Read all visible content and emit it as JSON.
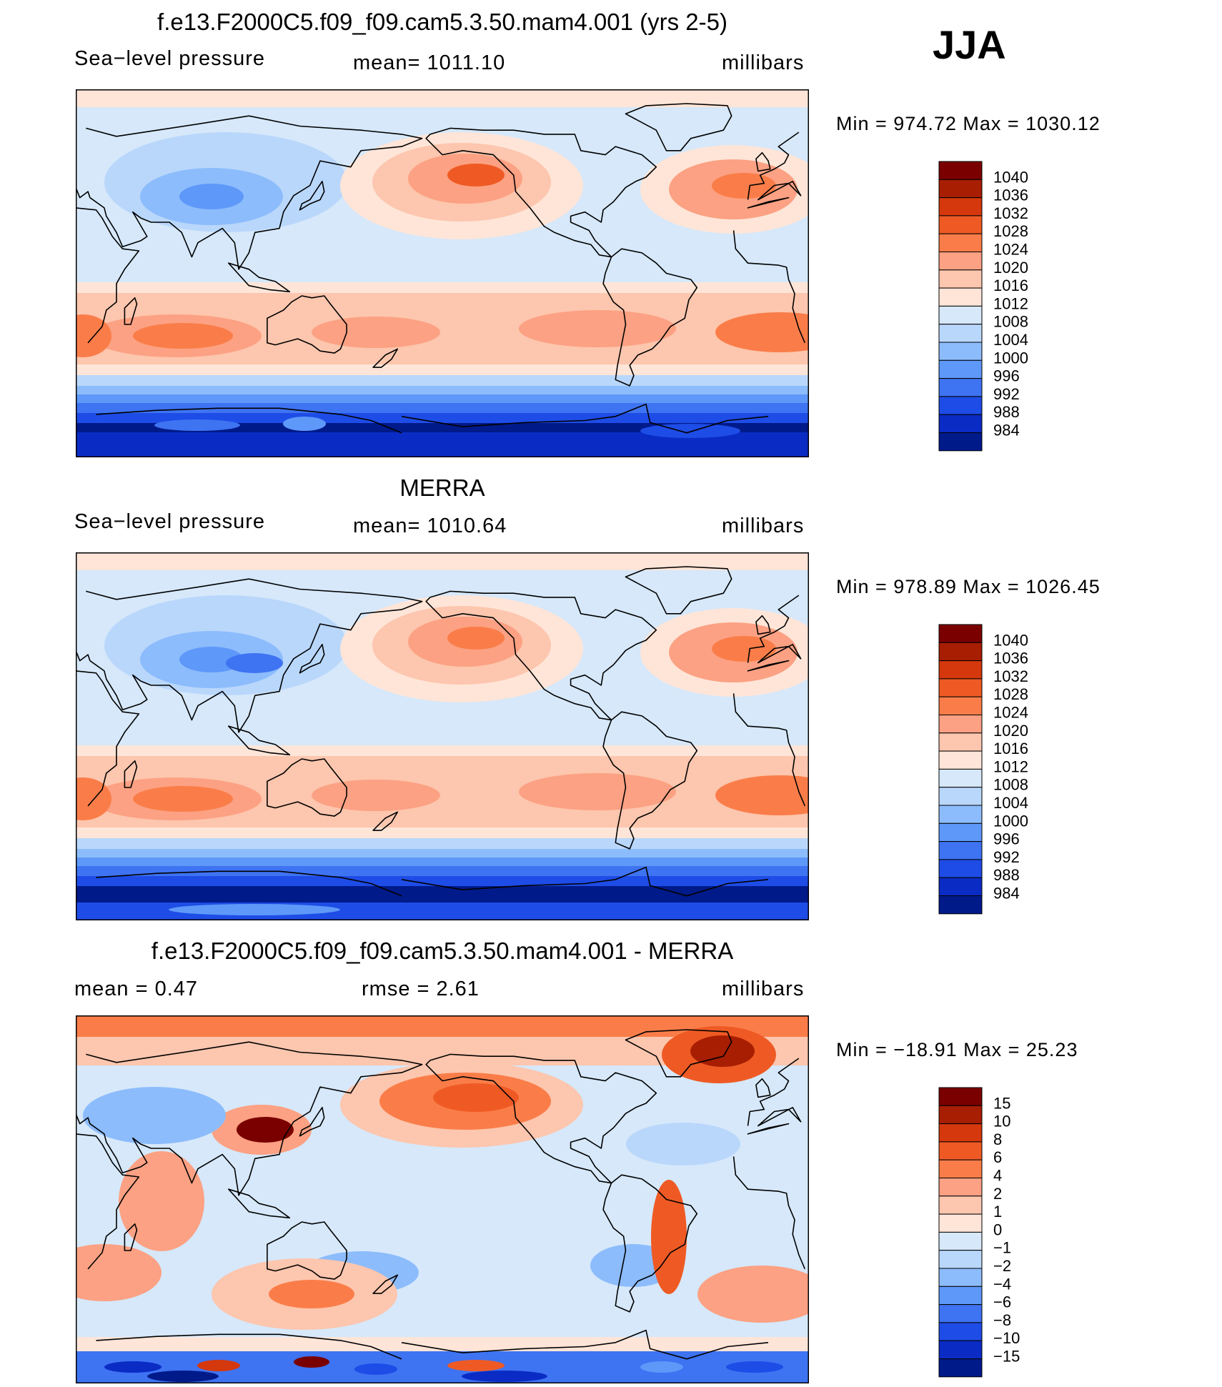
{
  "season": "JJA",
  "panels": [
    {
      "id": "model",
      "title": "f.e13.F2000C5.f09_f09.cam5.3.50.mam4.001 (yrs 2-5)",
      "left_label": "Sea−level pressure",
      "center_label": "mean=  1011.10",
      "units": "millibars",
      "minmax": "Min  =  974.72  Max  =  1030.12"
    },
    {
      "id": "obs",
      "title": "MERRA",
      "left_label": "Sea−level pressure",
      "center_label": "mean=  1010.64",
      "units": "millibars",
      "minmax": "Min  =  978.89  Max  =  1026.45"
    },
    {
      "id": "diff",
      "title": "f.e13.F2000C5.f09_f09.cam5.3.50.mam4.001 - MERRA",
      "left_label": "mean  =      0.47",
      "center_label": "rmse  =      2.61",
      "units": "millibars",
      "minmax": "Min  =  −18.91  Max  =     25.23"
    }
  ],
  "chart_data": [
    {
      "type": "heatmap",
      "title": "f.e13.F2000C5.f09_f09.cam5.3.50.mam4.001 (yrs 2-5)",
      "variable": "Sea−level pressure",
      "units": "millibars",
      "mean": 1011.1,
      "min": 974.72,
      "max": 1030.12,
      "colorbar_levels": [
        "1040",
        "1036",
        "1032",
        "1028",
        "1024",
        "1020",
        "1016",
        "1012",
        "1008",
        "1004",
        "1000",
        "996",
        "992",
        "988",
        "984"
      ],
      "colors": [
        "#7a0000",
        "#a81e02",
        "#d4380c",
        "#ef5a24",
        "#fa7d49",
        "#fca183",
        "#fdc6ae",
        "#fee5d8",
        "#d6e8fa",
        "#b9d7fb",
        "#8cbcfc",
        "#5e98f9",
        "#3e73f2",
        "#1e4ce6",
        "#0a2cc4",
        "#001a8a"
      ]
    },
    {
      "type": "heatmap",
      "title": "MERRA",
      "variable": "Sea−level pressure",
      "units": "millibars",
      "mean": 1010.64,
      "min": 978.89,
      "max": 1026.45,
      "colorbar_levels": [
        "1040",
        "1036",
        "1032",
        "1028",
        "1024",
        "1020",
        "1016",
        "1012",
        "1008",
        "1004",
        "1000",
        "996",
        "992",
        "988",
        "984"
      ],
      "colors": [
        "#7a0000",
        "#a81e02",
        "#d4380c",
        "#ef5a24",
        "#fa7d49",
        "#fca183",
        "#fdc6ae",
        "#fee5d8",
        "#d6e8fa",
        "#b9d7fb",
        "#8cbcfc",
        "#5e98f9",
        "#3e73f2",
        "#1e4ce6",
        "#0a2cc4",
        "#001a8a"
      ]
    },
    {
      "type": "heatmap",
      "title": "f.e13.F2000C5.f09_f09.cam5.3.50.mam4.001 - MERRA",
      "units": "millibars",
      "mean": 0.47,
      "rmse": 2.61,
      "min": -18.91,
      "max": 25.23,
      "colorbar_levels": [
        "15",
        "10",
        "8",
        "6",
        "4",
        "2",
        "1",
        "0",
        "−1",
        "−2",
        "−4",
        "−6",
        "−8",
        "−10",
        "−15"
      ],
      "colors": [
        "#7a0000",
        "#a81e02",
        "#d4380c",
        "#ef5a24",
        "#fa7d49",
        "#fca183",
        "#fdc6ae",
        "#fee5d8",
        "#d6e8fa",
        "#b9d7fb",
        "#8cbcfc",
        "#5e98f9",
        "#3e73f2",
        "#1e4ce6",
        "#0a2cc4",
        "#001a8a"
      ]
    }
  ]
}
